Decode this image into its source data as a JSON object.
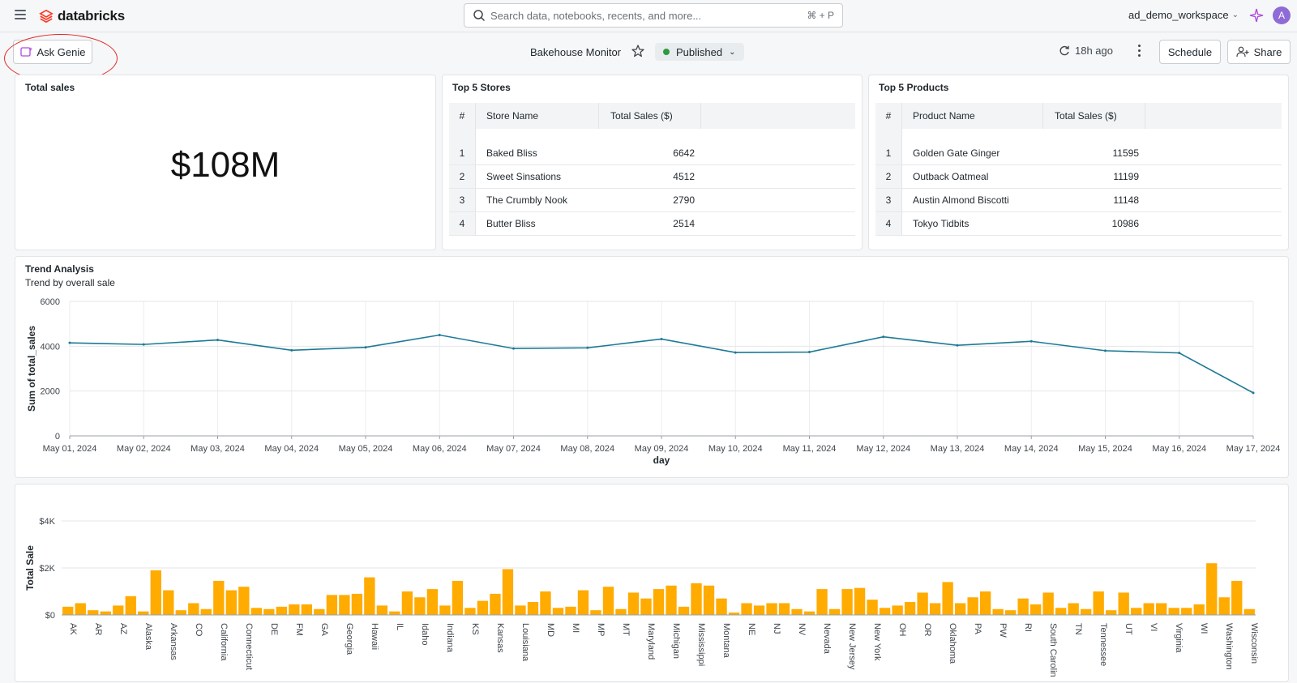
{
  "topbar": {
    "brand": "databricks",
    "search_placeholder": "Search data, notebooks, recents, and more...",
    "search_shortcut": "⌘ + P",
    "workspace": "ad_demo_workspace",
    "avatar_initial": "A"
  },
  "dashboard": {
    "ask_genie_label": "Ask Genie",
    "title": "Bakehouse Monitor",
    "status": "Published",
    "refreshed": "18h ago",
    "schedule_label": "Schedule",
    "share_label": "Share",
    "colors": {
      "accent_line": "#1c7a96",
      "bar": "#ffab00",
      "published_dot": "#2d9b3f",
      "annotation": "#e02828"
    }
  },
  "total_sales": {
    "title": "Total sales",
    "value": "$108M"
  },
  "top_stores": {
    "title": "Top 5 Stores",
    "headers": [
      "#",
      "Store Name",
      "Total Sales ($)"
    ],
    "rows": [
      {
        "rank": "1",
        "name": "Baked Bliss",
        "value": "6642"
      },
      {
        "rank": "2",
        "name": "Sweet Sinsations",
        "value": "4512"
      },
      {
        "rank": "3",
        "name": "The Crumbly Nook",
        "value": "2790"
      },
      {
        "rank": "4",
        "name": "Butter Bliss",
        "value": "2514"
      }
    ]
  },
  "top_products": {
    "title": "Top 5 Products",
    "headers": [
      "#",
      "Product Name",
      "Total Sales ($)"
    ],
    "rows": [
      {
        "rank": "1",
        "name": "Golden Gate Ginger",
        "value": "11595"
      },
      {
        "rank": "2",
        "name": "Outback Oatmeal",
        "value": "11199"
      },
      {
        "rank": "3",
        "name": "Austin Almond Biscotti",
        "value": "11148"
      },
      {
        "rank": "4",
        "name": "Tokyo Tidbits",
        "value": "10986"
      }
    ]
  },
  "trend": {
    "title": "Trend Analysis",
    "subtitle": "Trend by overall sale"
  },
  "chart_data": [
    {
      "type": "line",
      "x": [
        "May 01, 2024",
        "May 02, 2024",
        "May 03, 2024",
        "May 04, 2024",
        "May 05, 2024",
        "May 06, 2024",
        "May 07, 2024",
        "May 08, 2024",
        "May 09, 2024",
        "May 10, 2024",
        "May 11, 2024",
        "May 12, 2024",
        "May 13, 2024",
        "May 14, 2024",
        "May 15, 2024",
        "May 16, 2024",
        "May 17, 2024"
      ],
      "values": [
        4150,
        4080,
        4280,
        3820,
        3950,
        4500,
        3900,
        3930,
        4320,
        3720,
        3740,
        4420,
        4040,
        4220,
        3800,
        3700,
        1920
      ],
      "xlabel": "day",
      "ylabel": "Sum of total_sales",
      "yticks": [
        "0",
        "2000",
        "4000",
        "6000"
      ],
      "ylim": [
        0,
        6000
      ],
      "grid": true
    },
    {
      "type": "bar",
      "ylabel": "Total Sale",
      "yticks": [
        "$0",
        "$2K",
        "$4K"
      ],
      "ylim": [
        0,
        4000
      ],
      "labeled_categories": [
        "AK",
        "AR",
        "AZ",
        "Alaska",
        "Arkansas",
        "CO",
        "California",
        "Connecticut",
        "DE",
        "FM",
        "GA",
        "Georgia",
        "Hawaii",
        "IL",
        "Idaho",
        "Indiana",
        "KS",
        "Kansas",
        "Louisiana",
        "MD",
        "MI",
        "MP",
        "MT",
        "Maryland",
        "Michigan",
        "Mississippi",
        "Montana",
        "NE",
        "NJ",
        "NV",
        "Nevada",
        "New Jersey",
        "New York",
        "OH",
        "OR",
        "Oklahoma",
        "PA",
        "PW",
        "RI",
        "South Carolin",
        "TN",
        "Tennessee",
        "UT",
        "VI",
        "Virginia",
        "WI",
        "Washington",
        "Wisconsin"
      ],
      "values": [
        350,
        500,
        200,
        150,
        400,
        800,
        150,
        1900,
        1050,
        200,
        500,
        250,
        1450,
        1050,
        1200,
        300,
        250,
        350,
        450,
        450,
        250,
        850,
        850,
        900,
        1600,
        400,
        150,
        1000,
        750,
        1100,
        400,
        1450,
        300,
        600,
        900,
        1950,
        400,
        550,
        1000,
        300,
        350,
        1050,
        200,
        1200,
        250,
        950,
        700,
        1100,
        1250,
        350,
        1350,
        1250,
        700,
        100,
        500,
        400,
        500,
        500,
        250,
        150,
        1100,
        250,
        1100,
        1150,
        650,
        300,
        400,
        550,
        950,
        500,
        1400,
        500,
        750,
        1000,
        250,
        200,
        700,
        450,
        950,
        300,
        500,
        250,
        1000,
        200,
        950,
        300,
        500,
        500,
        300,
        300,
        450,
        2200,
        750,
        1450,
        250
      ]
    }
  ]
}
